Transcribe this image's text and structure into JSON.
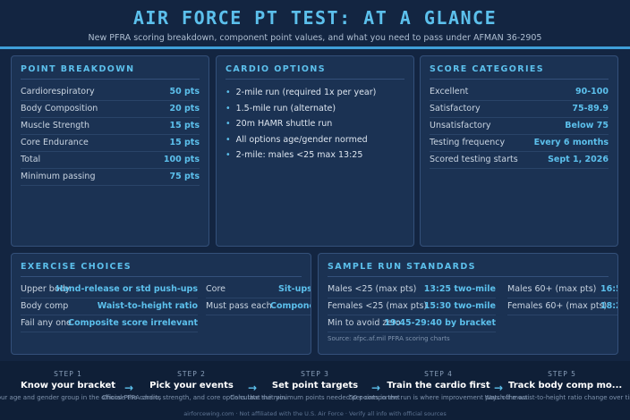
{
  "header": {
    "title": "AIR FORCE PT TEST: AT A GLANCE",
    "subtitle": "New PFRA scoring breakdown, component point values, and what you need to pass under AFMAN 36-2905"
  },
  "point_breakdown": {
    "title": "POINT BREAKDOWN",
    "rows": [
      {
        "label": "Cardiorespiratory",
        "value": "50 pts"
      },
      {
        "label": "Body Composition",
        "value": "20 pts"
      },
      {
        "label": "Muscle Strength",
        "value": "15 pts"
      },
      {
        "label": "Core Endurance",
        "value": "15 pts"
      },
      {
        "label": "Total",
        "value": "100 pts"
      },
      {
        "label": "Minimum passing",
        "value": "75 pts"
      }
    ]
  },
  "cardio_options": {
    "title": "CARDIO OPTIONS",
    "items": [
      "2-mile run (required 1x per year)",
      "1.5-mile run (alternate)",
      "20m HAMR shuttle run",
      "All options age/gender normed",
      "2-mile: males <25 max 13:25"
    ]
  },
  "score_categories": {
    "title": "SCORE CATEGORIES",
    "rows": [
      {
        "label": "Excellent",
        "value": "90-100"
      },
      {
        "label": "Satisfactory",
        "value": "75-89.9"
      },
      {
        "label": "Unsatisfactory",
        "value": "Below 75"
      },
      {
        "label": "Testing frequency",
        "value": "Every 6 months"
      },
      {
        "label": "Scored testing starts",
        "value": "Sept 1, 2026"
      }
    ]
  },
  "exercise_choices": {
    "title": "EXERCISE CHOICES",
    "left": [
      {
        "label": "Upper body",
        "value": "Hand-release or std push-ups"
      },
      {
        "label": "Body comp",
        "value": "Waist-to-height ratio"
      },
      {
        "label": "Fail any one",
        "value": "Composite score irrelevant"
      }
    ],
    "right": [
      {
        "label": "Core",
        "value": "Sit-ups,"
      },
      {
        "label": "Must pass each",
        "value": "Componen"
      }
    ]
  },
  "run_standards": {
    "title": "SAMPLE RUN STANDARDS",
    "left": [
      {
        "label": "Males <25 (max pts)",
        "value": "13:25 two-mile"
      },
      {
        "label": "Females <25 (max pts)",
        "value": "15:30 two-mile"
      },
      {
        "label": "Min to avoid zero",
        "value": "19:45-29:40 by bracket"
      }
    ],
    "right": [
      {
        "label": "Males 60+ (max pts)",
        "value": "16:5"
      },
      {
        "label": "Females 60+ (max pts)",
        "value": "18:2"
      }
    ],
    "source": "Source: afpc.af.mil PFRA scoring charts"
  },
  "steps": [
    {
      "num": "STEP 1",
      "name": "Know your bracket",
      "desc": "Find your age and gender group in the official PFRA charts"
    },
    {
      "num": "STEP 2",
      "name": "Pick your events",
      "desc": "Choose the cardio, strength, and core options that suit you"
    },
    {
      "num": "STEP 3",
      "name": "Set point targets",
      "desc": "Calculate the minimum points needed per component"
    },
    {
      "num": "STEP 4",
      "name": "Train the cardio first",
      "desc": "50 points in the run is where improvement pays off most"
    },
    {
      "num": "STEP 5",
      "name": "Track body comp mo...",
      "desc": "Watch the waist-to-height ratio change over time"
    }
  ],
  "footer": "airforcewing.com · Not affiliated with the U.S. Air Force · Verify all info with official sources"
}
